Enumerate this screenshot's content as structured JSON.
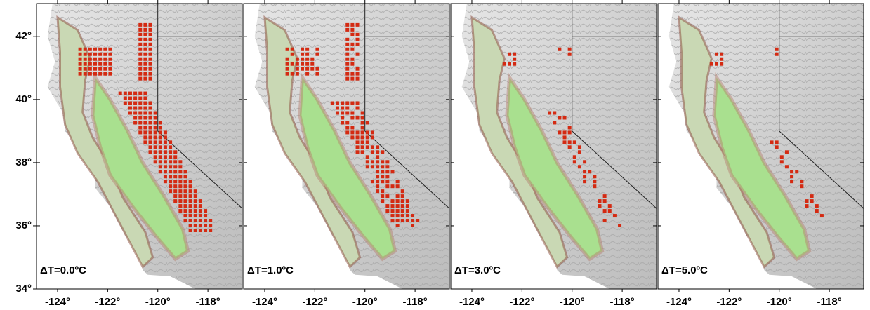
{
  "map": {
    "lat_ticks": [
      {
        "value": 34,
        "label": "34°"
      },
      {
        "value": 36,
        "label": "36°"
      },
      {
        "value": 38,
        "label": "38°"
      },
      {
        "value": 40,
        "label": "40°"
      },
      {
        "value": 42,
        "label": "42°"
      }
    ],
    "panels": [
      {
        "label": "ΔT=0.0ºC",
        "lon_ticks": [
          {
            "value": -124,
            "label": "-124°"
          },
          {
            "value": -122,
            "label": "-122°"
          },
          {
            "value": -120,
            "label": "-120°"
          },
          {
            "value": -118,
            "label": "-118°"
          }
        ]
      },
      {
        "label": "ΔT=1.0ºC",
        "lon_ticks": [
          {
            "value": -124,
            "label": "-124°"
          },
          {
            "value": -122,
            "label": "-122°"
          },
          {
            "value": -120,
            "label": "-120°"
          },
          {
            "value": -118,
            "label": "-118°"
          }
        ]
      },
      {
        "label": "ΔT=3.0ºC",
        "lon_ticks": [
          {
            "value": -124,
            "label": "-124°"
          },
          {
            "value": -122,
            "label": "-122°"
          },
          {
            "value": -120,
            "label": "-120°"
          },
          {
            "value": -118,
            "label": "-118°"
          }
        ]
      },
      {
        "label": "ΔT=5.0ºC",
        "lon_ticks": [
          {
            "value": -124,
            "label": "-124°"
          },
          {
            "value": -122,
            "label": "-122°"
          },
          {
            "value": -120,
            "label": "-120°"
          },
          {
            "value": -118,
            "label": "-118°"
          }
        ]
      }
    ]
  }
}
